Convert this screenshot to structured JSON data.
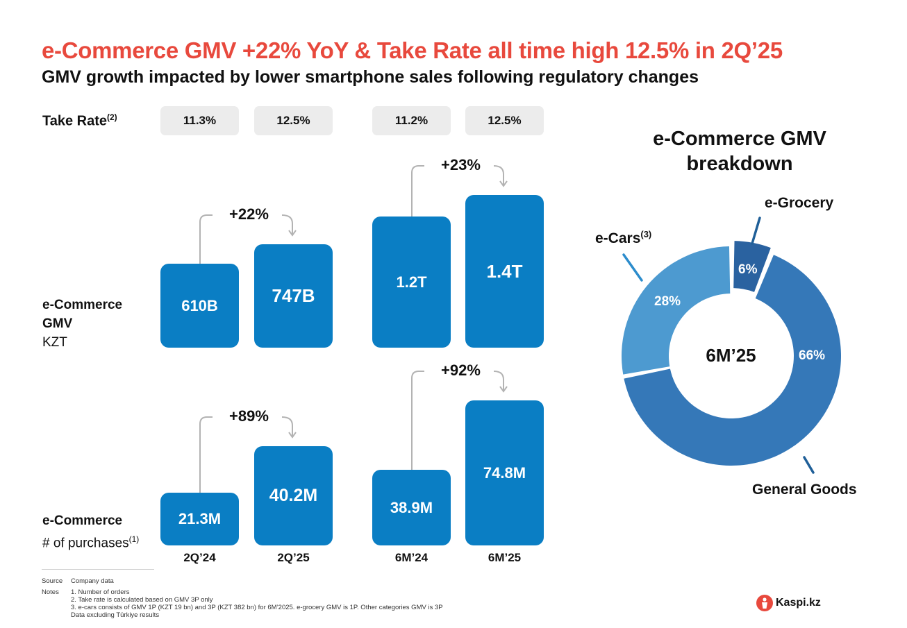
{
  "header": {
    "title": "e-Commerce GMV +22% YoY & Take Rate all time high 12.5% in 2Q’25",
    "subtitle": "GMV growth impacted by lower smartphone sales following regulatory changes"
  },
  "take_rate": {
    "label": "Take Rate",
    "note": "(2)",
    "values": [
      "11.3%",
      "12.5%",
      "11.2%",
      "12.5%"
    ]
  },
  "gmv_row": {
    "label_line1": "e-Commerce",
    "label_line2": "GMV",
    "unit": "KZT"
  },
  "purchases_row": {
    "label_line1": "e-Commerce",
    "label_line2": "# of purchases",
    "note": "(1)"
  },
  "chart_data": [
    {
      "type": "bar",
      "title": "e-Commerce GMV",
      "categories": [
        "2Q’24",
        "2Q’25",
        "6M’24",
        "6M’25"
      ],
      "values": [
        610,
        747,
        1200,
        1400
      ],
      "unit": "B KZT",
      "labels": [
        "610B",
        "747B",
        "1.2T",
        "1.4T"
      ],
      "growth": [
        {
          "from": "2Q’24",
          "to": "2Q’25",
          "label": "+22%"
        },
        {
          "from": "6M’24",
          "to": "6M’25",
          "label": "+23%"
        }
      ]
    },
    {
      "type": "bar",
      "title": "e-Commerce # of purchases",
      "categories": [
        "2Q’24",
        "2Q’25",
        "6M’24",
        "6M’25"
      ],
      "values": [
        21.3,
        40.2,
        38.9,
        74.8
      ],
      "unit": "M",
      "labels": [
        "21.3M",
        "40.2M",
        "38.9M",
        "74.8M"
      ],
      "growth": [
        {
          "from": "2Q’24",
          "to": "2Q’25",
          "label": "+89%"
        },
        {
          "from": "6M’24",
          "to": "6M’25",
          "label": "+92%"
        }
      ]
    },
    {
      "type": "pie",
      "title_line1": "e-Commerce GMV",
      "title_line2": "breakdown",
      "center_label": "6M’25",
      "slices": [
        {
          "name": "e-Grocery",
          "value": 6,
          "label": "6%",
          "color": "#2a62a0"
        },
        {
          "name": "General Goods",
          "value": 66,
          "label": "66%",
          "color": "#3578b8"
        },
        {
          "name": "e-Cars",
          "note": "(3)",
          "value": 28,
          "label": "28%",
          "color": "#4d9ad0"
        }
      ]
    }
  ],
  "footer": {
    "source_label": "Source",
    "source_value": "Company data",
    "notes_label": "Notes",
    "notes": [
      "1.    Number of orders",
      "2.    Take rate is calculated based on GMV 3P only",
      "3.    e-cars consists of GMV 1P (KZT 19 bn) and 3P (KZT 382 bn) for 6M’2025. e-grocery GMV is 1P. Other categories GMV is 3P"
    ],
    "extra": "Data excluding Türkiye results"
  },
  "logo": {
    "text": "Kaspi.kz",
    "color": "#e8493d"
  },
  "colors": {
    "bar": "#0a7ec4",
    "accent": "#e8493d",
    "connector": "#b3b3b3"
  }
}
